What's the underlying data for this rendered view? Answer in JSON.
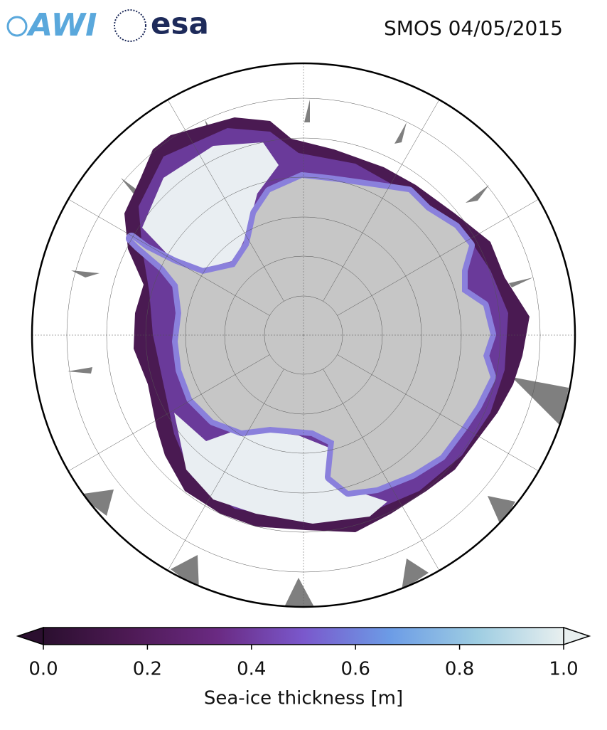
{
  "logos": [
    "AWI",
    "esa"
  ],
  "title": "SMOS 04/05/2015",
  "colorbar": {
    "label": "Sea-ice thickness [m]",
    "lim": [
      0,
      1
    ],
    "ticks": [
      {
        "value": 0,
        "label": "0.0"
      },
      {
        "value": 0.2,
        "label": "0.2"
      },
      {
        "value": 0.4,
        "label": "0.4"
      },
      {
        "value": 0.6,
        "label": "0.6"
      },
      {
        "value": 0.8,
        "label": "0.8"
      },
      {
        "value": 1,
        "label": "1.0"
      }
    ],
    "colormap": [
      "#2b0f2f",
      "#4e1a55",
      "#6a2a82",
      "#7a58cc",
      "#6c9ce6",
      "#9ecde2",
      "#e8efef"
    ]
  }
}
